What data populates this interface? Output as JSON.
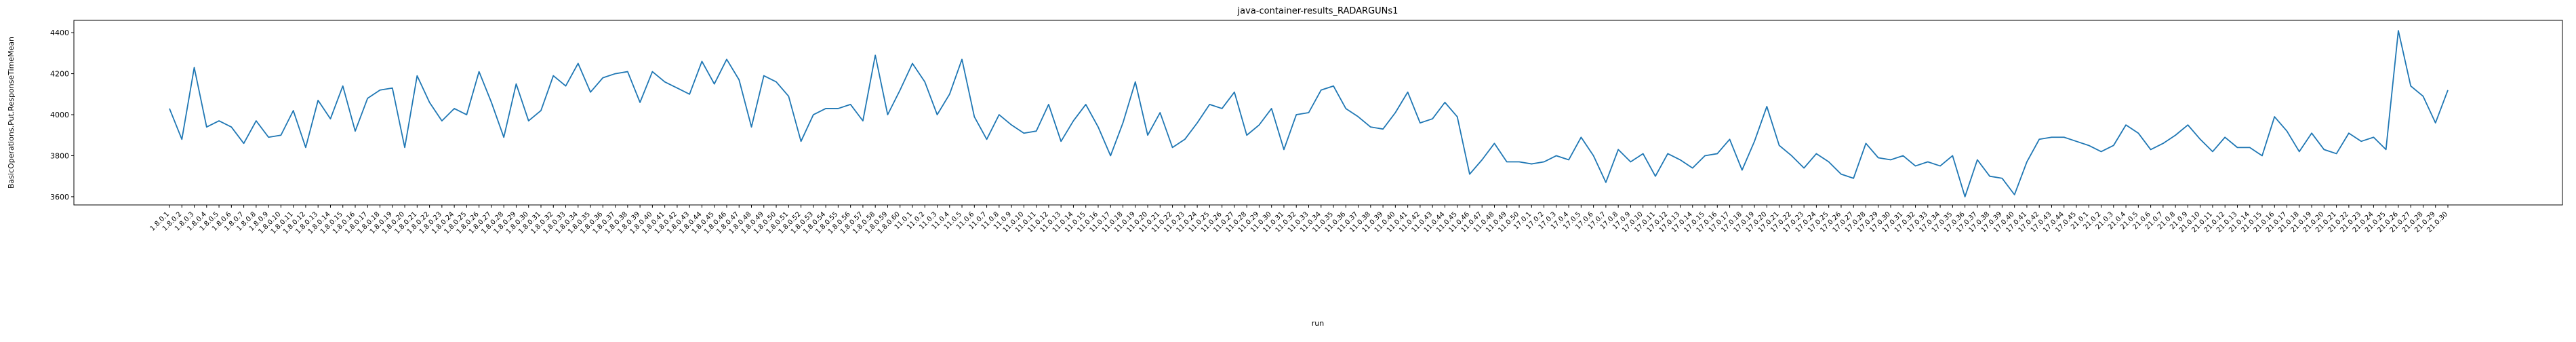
{
  "chart_data": {
    "type": "line",
    "title": "java-container-results_RADARGUNs1",
    "x_label": "run",
    "y_label": "BasicOperations.Put.ResponseTimeMean",
    "color": "#1f77b4",
    "ylim": [
      3560,
      4460
    ],
    "yticks": [
      3600,
      3800,
      4000,
      4200,
      4400
    ],
    "categories": [
      "1.8.0.1",
      "1.8.0.2",
      "1.8.0.3",
      "1.8.0.4",
      "1.8.0.5",
      "1.8.0.6",
      "1.8.0.7",
      "1.8.0.8",
      "1.8.0.9",
      "1.8.0.10",
      "1.8.0.11",
      "1.8.0.12",
      "1.8.0.13",
      "1.8.0.14",
      "1.8.0.15",
      "1.8.0.16",
      "1.8.0.17",
      "1.8.0.18",
      "1.8.0.19",
      "1.8.0.20",
      "1.8.0.21",
      "1.8.0.22",
      "1.8.0.23",
      "1.8.0.24",
      "1.8.0.25",
      "1.8.0.26",
      "1.8.0.27",
      "1.8.0.28",
      "1.8.0.29",
      "1.8.0.30",
      "1.8.0.31",
      "1.8.0.32",
      "1.8.0.33",
      "1.8.0.34",
      "1.8.0.35",
      "1.8.0.36",
      "1.8.0.37",
      "1.8.0.38",
      "1.8.0.39",
      "1.8.0.40",
      "1.8.0.41",
      "1.8.0.42",
      "1.8.0.43",
      "1.8.0.44",
      "1.8.0.45",
      "1.8.0.46",
      "1.8.0.47",
      "1.8.0.48",
      "1.8.0.49",
      "1.8.0.50",
      "1.8.0.51",
      "1.8.0.52",
      "1.8.0.53",
      "1.8.0.54",
      "1.8.0.55",
      "1.8.0.56",
      "1.8.0.57",
      "1.8.0.58",
      "1.8.0.59",
      "1.8.0.60",
      "11.0.1",
      "11.0.2",
      "11.0.3",
      "11.0.4",
      "11.0.5",
      "11.0.6",
      "11.0.7",
      "11.0.8",
      "11.0.9",
      "11.0.10",
      "11.0.11",
      "11.0.12",
      "11.0.13",
      "11.0.14",
      "11.0.15",
      "11.0.16",
      "11.0.17",
      "11.0.18",
      "11.0.19",
      "11.0.20",
      "11.0.21",
      "11.0.22",
      "11.0.23",
      "11.0.24",
      "11.0.25",
      "11.0.26",
      "11.0.27",
      "11.0.28",
      "11.0.29",
      "11.0.30",
      "11.0.31",
      "11.0.32",
      "11.0.33",
      "11.0.34",
      "11.0.35",
      "11.0.36",
      "11.0.37",
      "11.0.38",
      "11.0.39",
      "11.0.40",
      "11.0.41",
      "11.0.42",
      "11.0.43",
      "11.0.44",
      "11.0.45",
      "11.0.46",
      "11.0.47",
      "11.0.48",
      "11.0.49",
      "11.0.50",
      "17.0.1",
      "17.0.2",
      "17.0.3",
      "17.0.4",
      "17.0.5",
      "17.0.6",
      "17.0.7",
      "17.0.8",
      "17.0.9",
      "17.0.10",
      "17.0.11",
      "17.0.12",
      "17.0.13",
      "17.0.14",
      "17.0.15",
      "17.0.16",
      "17.0.17",
      "17.0.18",
      "17.0.19",
      "17.0.20",
      "17.0.21",
      "17.0.22",
      "17.0.23",
      "17.0.24",
      "17.0.25",
      "17.0.26",
      "17.0.27",
      "17.0.28",
      "17.0.29",
      "17.0.30",
      "17.0.31",
      "17.0.32",
      "17.0.33",
      "17.0.34",
      "17.0.35",
      "17.0.36",
      "17.0.37",
      "17.0.38",
      "17.0.39",
      "17.0.40",
      "17.0.41",
      "17.0.42",
      "17.0.43",
      "17.0.44",
      "17.0.45",
      "21.0.1",
      "21.0.2",
      "21.0.3",
      "21.0.4",
      "21.0.5",
      "21.0.6",
      "21.0.7",
      "21.0.8",
      "21.0.9",
      "21.0.10",
      "21.0.11",
      "21.0.12",
      "21.0.13",
      "21.0.14",
      "21.0.15",
      "21.0.16",
      "21.0.17",
      "21.0.18",
      "21.0.19",
      "21.0.20",
      "21.0.21",
      "21.0.22",
      "21.0.23",
      "21.0.24",
      "21.0.25",
      "21.0.26",
      "21.0.27",
      "21.0.28",
      "21.0.29",
      "21.0.30"
    ],
    "values": [
      4030,
      3880,
      4230,
      3940,
      3970,
      3940,
      3860,
      3970,
      3890,
      3900,
      4020,
      3840,
      4070,
      3980,
      4140,
      3920,
      4080,
      4120,
      4130,
      3840,
      4190,
      4060,
      3970,
      4030,
      4000,
      4210,
      4060,
      3890,
      4150,
      3970,
      4020,
      4190,
      4140,
      4250,
      4110,
      4180,
      4200,
      4210,
      4060,
      4210,
      4160,
      4130,
      4100,
      4260,
      4150,
      4270,
      4170,
      3940,
      4190,
      4160,
      4090,
      3870,
      4000,
      4030,
      4030,
      4050,
      3970,
      4290,
      4000,
      4120,
      4250,
      4160,
      4000,
      4100,
      4270,
      3990,
      3880,
      4000,
      3950,
      3910,
      3920,
      4050,
      3870,
      3970,
      4050,
      3940,
      3800,
      3960,
      4160,
      3900,
      4010,
      3840,
      3880,
      3960,
      4050,
      4030,
      4110,
      3900,
      3950,
      4030,
      3830,
      4000,
      4010,
      4120,
      4140,
      4030,
      3990,
      3940,
      3930,
      4010,
      4110,
      3960,
      3980,
      4060,
      3990,
      3710,
      3780,
      3860,
      3770,
      3770,
      3760,
      3770,
      3800,
      3780,
      3890,
      3800,
      3670,
      3830,
      3770,
      3810,
      3700,
      3810,
      3780,
      3740,
      3800,
      3810,
      3880,
      3730,
      3870,
      4040,
      3850,
      3800,
      3740,
      3810,
      3770,
      3710,
      3690,
      3860,
      3790,
      3780,
      3800,
      3750,
      3770,
      3750,
      3800,
      3600,
      3780,
      3700,
      3690,
      3610,
      3770,
      3880,
      3890,
      3890,
      3870,
      3850,
      3820,
      3850,
      3950,
      3910,
      3830,
      3860,
      3900,
      3950,
      3880,
      3820,
      3890,
      3840,
      3840,
      3800,
      3990,
      3920,
      3820,
      3910,
      3830,
      3810,
      3910,
      3870,
      3890,
      3830,
      4410,
      4140,
      4090,
      3960,
      4120
    ]
  }
}
